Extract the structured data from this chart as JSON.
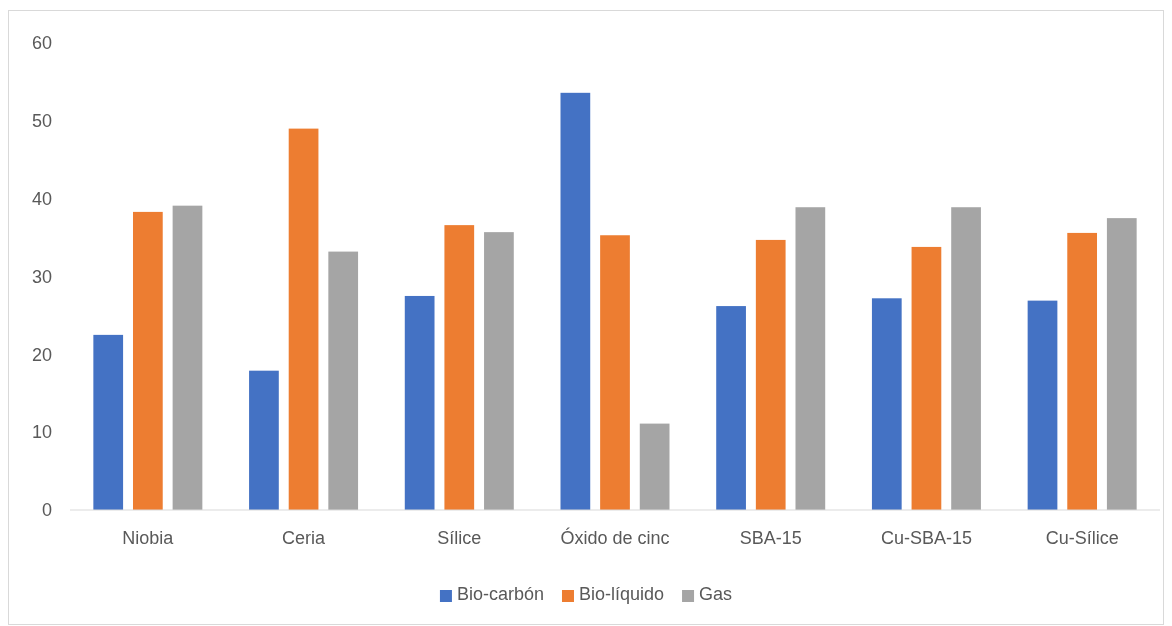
{
  "chart_data": {
    "type": "bar",
    "categories": [
      "Niobia",
      "Ceria",
      "Sílice",
      "Óxido de cinc",
      "SBA-15",
      "Cu-SBA-15",
      "Cu-Sílice"
    ],
    "series": [
      {
        "name": "Bio-carbón",
        "color": "#4472c4",
        "values": [
          22.5,
          17.9,
          27.5,
          53.6,
          26.2,
          27.2,
          26.9
        ]
      },
      {
        "name": "Bio-líquido",
        "color": "#ed7d31",
        "values": [
          38.3,
          49.0,
          36.6,
          35.3,
          34.7,
          33.8,
          35.6
        ]
      },
      {
        "name": "Gas",
        "color": "#a5a5a5",
        "values": [
          39.1,
          33.2,
          35.7,
          11.1,
          38.9,
          38.9,
          37.5
        ]
      }
    ],
    "ylim": [
      0,
      60
    ],
    "yticks": [
      0,
      10,
      20,
      30,
      40,
      50,
      60
    ],
    "grid": false,
    "legend": "bottom"
  }
}
